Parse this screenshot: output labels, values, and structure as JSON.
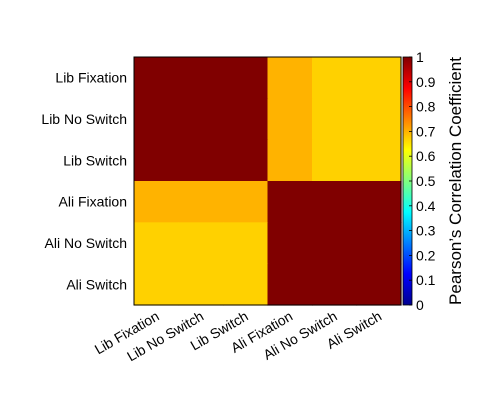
{
  "chart_data": {
    "type": "heatmap",
    "rows": [
      "Lib Fixation",
      "Lib No Switch",
      "Lib Switch",
      "Ali Fixation",
      "Ali No Switch",
      "Ali Switch"
    ],
    "columns": [
      "Lib Fixation",
      "Lib No Switch",
      "Lib Switch",
      "Ali Fixation",
      "Ali No Switch",
      "Ali Switch"
    ],
    "values": [
      [
        1.0,
        1.0,
        1.0,
        0.7,
        0.67,
        0.67
      ],
      [
        1.0,
        1.0,
        1.0,
        0.7,
        0.67,
        0.67
      ],
      [
        1.0,
        1.0,
        1.0,
        0.7,
        0.67,
        0.67
      ],
      [
        0.7,
        0.7,
        0.7,
        1.0,
        1.0,
        1.0
      ],
      [
        0.67,
        0.67,
        0.67,
        1.0,
        1.0,
        1.0
      ],
      [
        0.67,
        0.67,
        0.67,
        1.0,
        1.0,
        1.0
      ]
    ],
    "colorbar": {
      "label": "Pearson’s Correlation Coefficient",
      "range": [
        0,
        1
      ],
      "ticks": [
        "0",
        "0.1",
        "0.2",
        "0.3",
        "0.4",
        "0.5",
        "0.6",
        "0.7",
        "0.8",
        "0.9",
        "1"
      ],
      "colormap": "jet"
    }
  }
}
